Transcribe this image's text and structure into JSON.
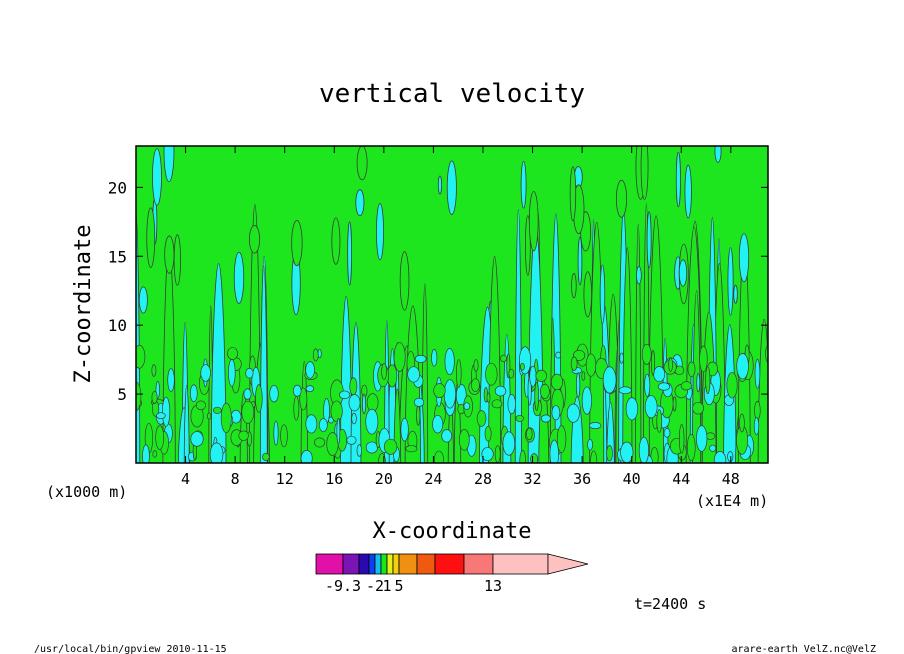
{
  "chart_data": {
    "type": "heatmap",
    "title": "vertical velocity",
    "xlabel": "X-coordinate",
    "ylabel": "Z-coordinate",
    "x_units_left": "(x1000 m)",
    "x_units_right": "(x1E4 m)",
    "x_ticks": [
      4,
      8,
      12,
      16,
      20,
      24,
      28,
      32,
      36,
      40,
      44,
      48
    ],
    "y_ticks": [
      5,
      10,
      15,
      20
    ],
    "xlim": [
      0,
      51
    ],
    "ylim": [
      0,
      23
    ],
    "colorbar": {
      "labels": [
        {
          "text": "-9.3",
          "level": -9.3
        },
        {
          "text": "-2",
          "level": -2
        },
        {
          "text": "1",
          "level": 1
        },
        {
          "text": "5",
          "level": 5
        },
        {
          "text": "13",
          "level": 13
        }
      ],
      "colors": [
        "#e010a8",
        "#7a14b4",
        "#2a0ab0",
        "#1040f0",
        "#10c0f0",
        "#18e818",
        "#e6f018",
        "#f0d010",
        "#f09010",
        "#f05a10",
        "#ff1010",
        "#f87878",
        "#ffc0c0"
      ],
      "extend": "max"
    },
    "field_colors": {
      "background": "#1ee61e",
      "negative": "#23f2f2",
      "contour": "#3a3a3a"
    },
    "time_label": "t=2400 s"
  },
  "footer": {
    "left": "/usr/local/bin/gpview  2010-11-15",
    "right": "arare-earth_VelZ.nc@VelZ"
  }
}
